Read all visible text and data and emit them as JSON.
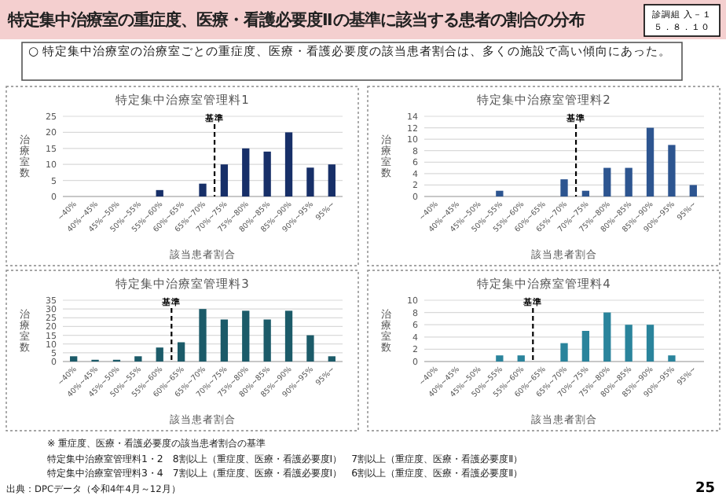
{
  "chart_data": [
    {
      "type": "other",
      "title": "特定集中治療室の重症度、医療・看護必要度Ⅱの基準に該当する患者の割合の分布",
      "subtitle": "○ 特定集中治療室の治療室ごとの重症度、医療・看護必要度の該当患者割合は、多くの施設で高い傾向にあった。",
      "annotations": [
        "診調組 入－１",
        "５．８．１０",
        "※ 重症度、医療・看護必要度の該当患者割合の基準",
        "特定集中治療室管理料1・2　8割以上（重症度、医療・看護必要度Ⅰ）　7割以上（重症度、医療・看護必要度Ⅱ）",
        "特定集中治療室管理料3・4　7割以上（重症度、医療・看護必要度Ⅰ）　6割以上（重症度、医療・看護必要度Ⅱ）",
        "出典：DPCデータ（令和4年4月～12月）",
        "25"
      ]
    },
    {
      "type": "bar",
      "title": "特定集中治療室管理料1",
      "xlabel": "該当患者割合",
      "ylabel": "治療室数",
      "categories": [
        "~40%",
        "40%~45%",
        "45%~50%",
        "50%~55%",
        "55%~60%",
        "60%~65%",
        "65%~70%",
        "70%~75%",
        "75%~80%",
        "80%~85%",
        "85%~90%",
        "90%~95%",
        "95%~"
      ],
      "values": [
        0,
        0,
        0,
        0,
        2,
        0,
        4,
        10,
        15,
        14,
        20,
        9,
        10
      ],
      "color": "#172f68",
      "ylim": [
        0,
        25
      ],
      "yticks": [
        0,
        5,
        10,
        15,
        20,
        25
      ],
      "grid": "y",
      "ref_lines": [
        {
          "axis": "x",
          "value": "70%~75%",
          "label": "基準",
          "line_style": "dashed",
          "color": "#000000"
        }
      ]
    },
    {
      "type": "bar",
      "title": "特定集中治療室管理料2",
      "xlabel": "該当患者割合",
      "ylabel": "治療室数",
      "categories": [
        "~40%",
        "40%~45%",
        "45%~50%",
        "50%~55%",
        "55%~60%",
        "60%~65%",
        "65%~70%",
        "70%~75%",
        "75%~80%",
        "80%~85%",
        "85%~90%",
        "90%~95%",
        "95%~"
      ],
      "values": [
        0,
        0,
        0,
        1,
        0,
        0,
        3,
        1,
        5,
        5,
        12,
        9,
        2
      ],
      "color": "#2d5590",
      "ylim": [
        0,
        14
      ],
      "yticks": [
        0,
        2,
        4,
        6,
        8,
        10,
        12,
        14
      ],
      "grid": "y",
      "ref_lines": [
        {
          "axis": "x",
          "value": "70%~75%",
          "label": "基準",
          "line_style": "dashed",
          "color": "#000000"
        }
      ]
    },
    {
      "type": "bar",
      "title": "特定集中治療室管理料3",
      "xlabel": "該当患者割合",
      "ylabel": "治療室数",
      "categories": [
        "~40%",
        "40%~45%",
        "45%~50%",
        "50%~55%",
        "55%~60%",
        "60%~65%",
        "65%~70%",
        "70%~75%",
        "75%~80%",
        "80%~85%",
        "85%~90%",
        "90%~95%",
        "95%~"
      ],
      "values": [
        3,
        1,
        1,
        3,
        8,
        11,
        30,
        24,
        29,
        24,
        29,
        15,
        3
      ],
      "color": "#1c5b69",
      "ylim": [
        0,
        35
      ],
      "yticks": [
        0,
        5,
        10,
        15,
        20,
        25,
        30,
        35
      ],
      "grid": "y",
      "ref_lines": [
        {
          "axis": "x",
          "value": "60%~65%",
          "label": "基準",
          "line_style": "dashed",
          "color": "#000000"
        }
      ]
    },
    {
      "type": "bar",
      "title": "特定集中治療室管理料4",
      "xlabel": "該当患者割合",
      "ylabel": "治療室数",
      "categories": [
        "~40%",
        "40%~45%",
        "45%~50%",
        "50%~55%",
        "55%~60%",
        "60%~65%",
        "65%~70%",
        "70%~75%",
        "75%~80%",
        "80%~85%",
        "85%~90%",
        "90%~95%",
        "95%~"
      ],
      "values": [
        0,
        0,
        0,
        1,
        1,
        0,
        3,
        5,
        8,
        6,
        6,
        1,
        0
      ],
      "color": "#2a849c",
      "ylim": [
        0,
        10
      ],
      "yticks": [
        0,
        2,
        4,
        6,
        8,
        10
      ],
      "grid": "y",
      "ref_lines": [
        {
          "axis": "x",
          "value": "60%~65%",
          "label": "基準",
          "line_style": "dashed",
          "color": "#000000"
        }
      ]
    }
  ]
}
